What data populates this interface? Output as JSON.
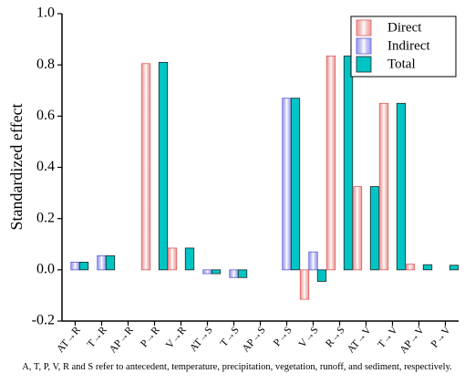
{
  "chart_data": {
    "type": "bar",
    "y_label": "Standardized effect",
    "footnote": "A, T, P, V, R and S refer to antecedent, temperature, precipitation, vegetation, runoff, and sediment, respectively.",
    "categories": [
      "AT→R",
      "T→R",
      "AP→R",
      "P→R",
      "V→R",
      "AT→S",
      "T→S",
      "AP→S",
      "P→S",
      "V→S",
      "R→S",
      "AT→V",
      "T→V",
      "AP→V",
      "P→V"
    ],
    "series": [
      {
        "name": "Direct",
        "color": "#e05a5a",
        "values": [
          0,
          0,
          0,
          0.805,
          0.085,
          0,
          0,
          0,
          0,
          -0.115,
          0.835,
          0.325,
          0.65,
          0.022,
          0
        ]
      },
      {
        "name": "Indirect",
        "color": "#5a5ae0",
        "values": [
          0.03,
          0.055,
          0,
          0,
          0,
          -0.015,
          -0.03,
          0,
          0.67,
          0.07,
          0,
          0,
          0,
          0,
          0
        ]
      },
      {
        "name": "Total",
        "color": "#00c4c4",
        "values": [
          0.03,
          0.055,
          0,
          0.81,
          0.085,
          -0.015,
          -0.03,
          0,
          0.67,
          -0.045,
          0.835,
          0.325,
          0.65,
          0.02,
          0.018
        ]
      }
    ],
    "ylim": [
      -0.2,
      1.0
    ],
    "yticks": [
      {
        "value": -0.2,
        "label": "-0.2"
      },
      {
        "value": 0,
        "label": "0.0"
      },
      {
        "value": 0.2,
        "label": "0.2"
      },
      {
        "value": 0.4,
        "label": "0.4"
      },
      {
        "value": 0.6,
        "label": "0.6"
      },
      {
        "value": 0.8,
        "label": "0.8"
      },
      {
        "value": 1,
        "label": "1.0"
      }
    ],
    "legend": "upper right"
  }
}
